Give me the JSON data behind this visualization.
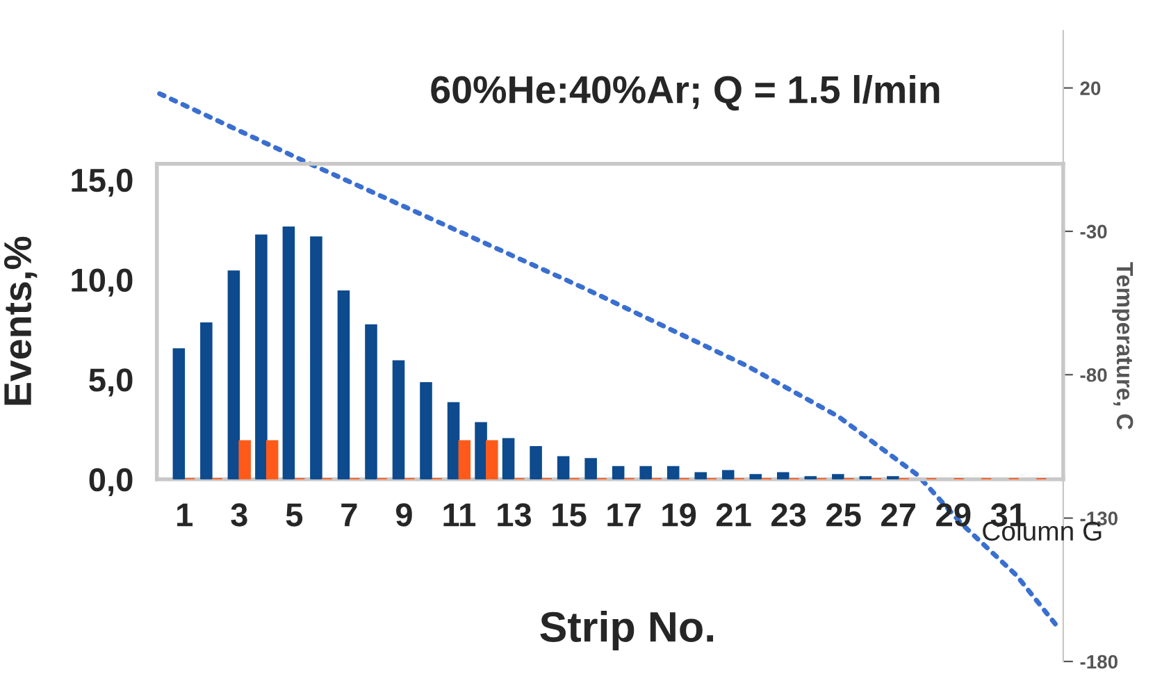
{
  "chart_data": {
    "type": "bar",
    "title": "60%He:40%Ar; Q = 1.5 l/min",
    "xlabel": "Strip No.",
    "ylabel": "Events,%",
    "y2label": "Temperature, C",
    "x": [
      1,
      2,
      3,
      4,
      5,
      6,
      7,
      8,
      9,
      10,
      11,
      12,
      13,
      14,
      15,
      16,
      17,
      18,
      19,
      20,
      21,
      22,
      23,
      24,
      25,
      26,
      27,
      28,
      29,
      30,
      31,
      32
    ],
    "xlim": [
      0,
      33
    ],
    "xticks": [
      1,
      3,
      5,
      7,
      9,
      11,
      13,
      15,
      17,
      19,
      21,
      23,
      25,
      27,
      29,
      31
    ],
    "ylim": [
      0,
      15.8
    ],
    "yticks": [
      {
        "value": 0,
        "label": "0,0"
      },
      {
        "value": 5,
        "label": "5,0"
      },
      {
        "value": 10,
        "label": "10,0"
      },
      {
        "value": 15,
        "label": "15,0"
      }
    ],
    "y2lim": [
      -180,
      40
    ],
    "y2ticks": [
      -180,
      -130,
      -80,
      -30,
      20
    ],
    "grid": false,
    "series": [
      {
        "color": "#0d4a8e",
        "values": [
          6.5,
          7.8,
          10.4,
          12.2,
          12.6,
          12.1,
          9.4,
          7.7,
          5.9,
          4.8,
          3.8,
          2.8,
          2.0,
          1.6,
          1.1,
          1.0,
          0.6,
          0.6,
          0.6,
          0.3,
          0.4,
          0.2,
          0.3,
          0.1,
          0.2,
          0.1,
          0.1,
          null,
          null,
          null,
          null,
          null
        ]
      },
      {
        "color": "#ff5a1a",
        "values": [
          0,
          0,
          1.9,
          1.9,
          0,
          0,
          0,
          0,
          0,
          0,
          1.9,
          1.9,
          0,
          0,
          0,
          0,
          0,
          0,
          0,
          0,
          0,
          0,
          0,
          0,
          0,
          0,
          0,
          0,
          0,
          0,
          0,
          0
        ]
      },
      {
        "name": "Column G",
        "type": "line",
        "axis": "y2",
        "color": "#3a6fd0",
        "line_style": "dotted",
        "marker": "none",
        "x": [
          0.1,
          5.7,
          15.6,
          21.5,
          24.8,
          27.7,
          29.3,
          31.3,
          32.8
        ],
        "values": [
          18,
          -7,
          -50,
          -77,
          -94.5,
          -115,
          -132,
          -150,
          -168
        ]
      }
    ]
  }
}
